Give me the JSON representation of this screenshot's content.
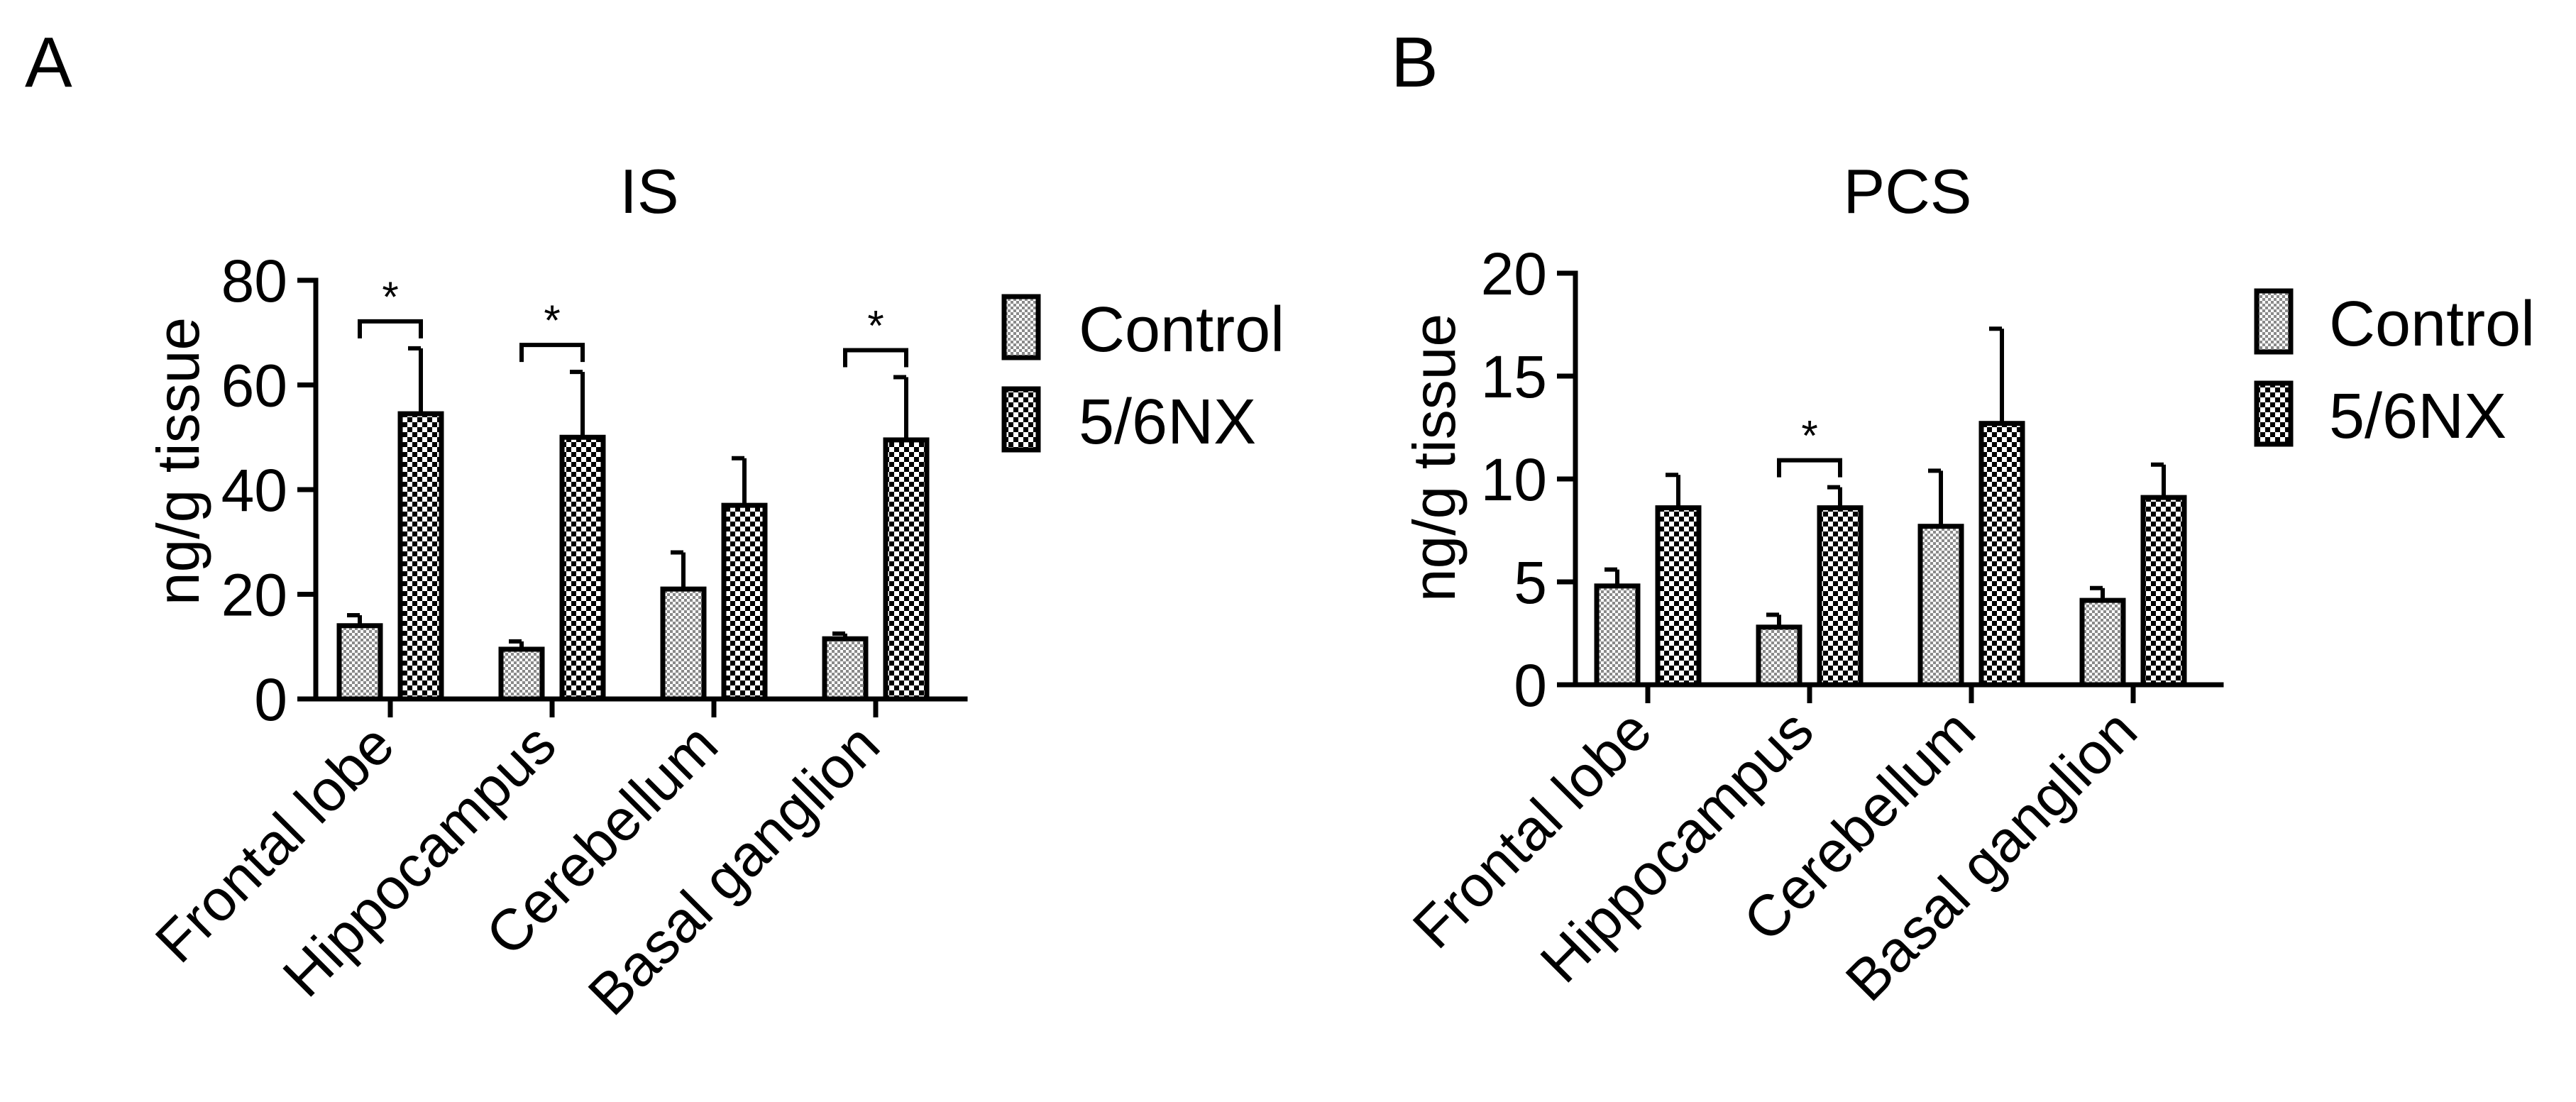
{
  "chart_data": [
    {
      "panel_label": "A",
      "type": "bar",
      "title": "IS",
      "ylabel": "ng/g tissue",
      "ylim": [
        0,
        80
      ],
      "yticks": [
        0,
        20,
        40,
        60,
        80
      ],
      "categories": [
        "Frontal lobe",
        "Hippocampus",
        "Cerebellum",
        "Basal ganglion"
      ],
      "series": [
        {
          "name": "Control",
          "values": [
            14,
            9.5,
            21,
            11.5
          ],
          "errors": [
            2,
            1.5,
            7,
            1
          ]
        },
        {
          "name": "5/6NX",
          "values": [
            54.5,
            50,
            37,
            49.5
          ],
          "errors": [
            12.5,
            12.5,
            9,
            12
          ]
        }
      ],
      "significance": [
        {
          "category_index": 0,
          "label": "*"
        },
        {
          "category_index": 1,
          "label": "*"
        },
        {
          "category_index": 3,
          "label": "*"
        }
      ],
      "legend_position": "right"
    },
    {
      "panel_label": "B",
      "type": "bar",
      "title": "PCS",
      "ylabel": "ng/g tissue",
      "ylim": [
        0,
        20
      ],
      "yticks": [
        0,
        5,
        10,
        15,
        20
      ],
      "categories": [
        "Frontal lobe",
        "Hippocampus",
        "Cerebellum",
        "Basal ganglion"
      ],
      "series": [
        {
          "name": "Control",
          "values": [
            4.8,
            2.8,
            7.7,
            4.1
          ],
          "errors": [
            0.8,
            0.6,
            2.7,
            0.6
          ]
        },
        {
          "name": "5/6NX",
          "values": [
            8.6,
            8.6,
            12.7,
            9.1
          ],
          "errors": [
            1.6,
            1.0,
            4.6,
            1.6
          ]
        }
      ],
      "significance": [
        {
          "category_index": 1,
          "label": "*"
        }
      ],
      "legend_position": "right"
    }
  ]
}
